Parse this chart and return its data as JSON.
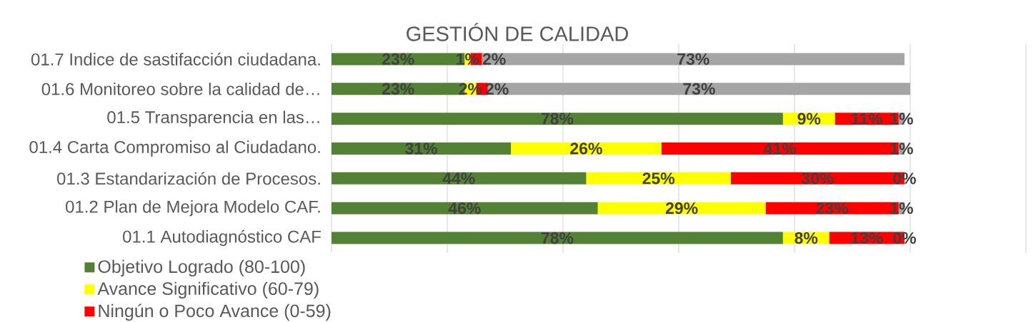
{
  "chart_data": {
    "type": "bar",
    "orientation": "horizontal",
    "stacked": true,
    "title": "GESTIÓN DE CALIDAD",
    "categories": [
      "01.7 Indice de sastifacción ciudadana.",
      "01.6 Monitoreo sobre la calidad de…",
      "01.5 Transparencia en las…",
      "01.4 Carta Compromiso al Ciudadano.",
      "01.3 Estandarización de Procesos.",
      "01.2 Plan de Mejora Modelo CAF.",
      "01.1  Autodiagnóstico CAF"
    ],
    "series": [
      {
        "name": "Objetivo Logrado (80-100)",
        "color": "#548235",
        "values": [
          23,
          23,
          78,
          31,
          44,
          46,
          78
        ],
        "value_labels": [
          "23%",
          "23%",
          "78%",
          "31%",
          "44%",
          "46%",
          "78%"
        ]
      },
      {
        "name": "Avance Significativo (60-79)",
        "color": "#ffff00",
        "values": [
          1,
          2,
          9,
          26,
          25,
          29,
          8
        ],
        "value_labels": [
          "1%",
          "2%",
          "9%",
          "26%",
          "25%",
          "29%",
          "8%"
        ]
      },
      {
        "name": "Ningún o Poco Avance (0-59)",
        "color": "#ff0000",
        "values": [
          2,
          2,
          11,
          41,
          30,
          23,
          13
        ],
        "value_labels": [
          "2%",
          "2%",
          "11%",
          "41%",
          "30%",
          "23%",
          "13%"
        ]
      },
      {
        "color": "#a5a5a5",
        "values": [
          73,
          73,
          1,
          1,
          0,
          1,
          0
        ],
        "value_labels": [
          "73%",
          "73%",
          "1%",
          "1%",
          "0%",
          "1%",
          "0%"
        ]
      }
    ],
    "xlim": [
      0,
      120
    ],
    "xticks": [
      {
        "value": 0,
        "label": null
      },
      {
        "value": 20,
        "label": null
      },
      {
        "value": 40,
        "label": null
      },
      {
        "value": 60,
        "label": null
      },
      {
        "value": 80,
        "label": null
      },
      {
        "value": 100,
        "label": null
      },
      {
        "value": 120,
        "label": null
      }
    ],
    "grid": "x",
    "legend": "bottom left",
    "tick_labels": "y"
  }
}
